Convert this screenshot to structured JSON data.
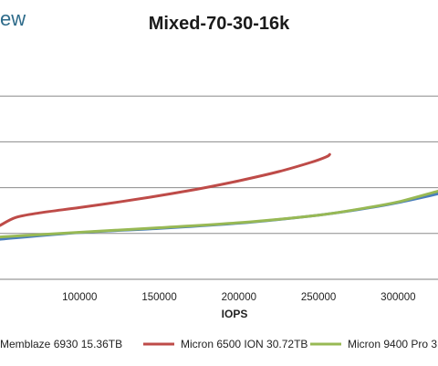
{
  "header": {
    "logo_text": "ew"
  },
  "chart_data": {
    "type": "line",
    "title": "Mixed-70-30-16k",
    "xlabel": "IOPS",
    "ylabel": "",
    "xlim": [
      50000,
      325000
    ],
    "x_ticks": [
      100000,
      150000,
      200000,
      250000,
      300000
    ],
    "x_tick_labels": [
      "100000",
      "150000",
      "200000",
      "250000",
      "300000"
    ],
    "ylim": [
      0,
      100
    ],
    "y_gridlines": [
      20,
      40,
      60,
      80
    ],
    "grid": true,
    "legend_position": "bottom",
    "series": [
      {
        "name": "Memblaze 6930 15.36TB",
        "color": "#4a7ebb",
        "points": [
          [
            50000,
            17.5
          ],
          [
            100000,
            20.4
          ],
          [
            150000,
            22.2
          ],
          [
            200000,
            24.5
          ],
          [
            250000,
            28.0
          ],
          [
            280000,
            31.0
          ],
          [
            300000,
            33.5
          ],
          [
            325000,
            37.3
          ]
        ]
      },
      {
        "name": "Micron 6500 ION 30.72TB",
        "color": "#be4b48",
        "points": [
          [
            50000,
            23.5
          ],
          [
            60000,
            27.0
          ],
          [
            75000,
            29.0
          ],
          [
            100000,
            31.3
          ],
          [
            125000,
            33.8
          ],
          [
            150000,
            36.5
          ],
          [
            175000,
            39.5
          ],
          [
            200000,
            43.0
          ],
          [
            225000,
            47.0
          ],
          [
            245000,
            51.0
          ],
          [
            255000,
            53.5
          ],
          [
            257000,
            54.5
          ]
        ]
      },
      {
        "name": "Micron 9400 Pro 3",
        "color": "#98b954",
        "points": [
          [
            50000,
            18.5
          ],
          [
            100000,
            20.5
          ],
          [
            150000,
            22.5
          ],
          [
            200000,
            24.7
          ],
          [
            250000,
            28.0
          ],
          [
            280000,
            31.2
          ],
          [
            300000,
            33.8
          ],
          [
            325000,
            38.5
          ]
        ]
      }
    ]
  }
}
